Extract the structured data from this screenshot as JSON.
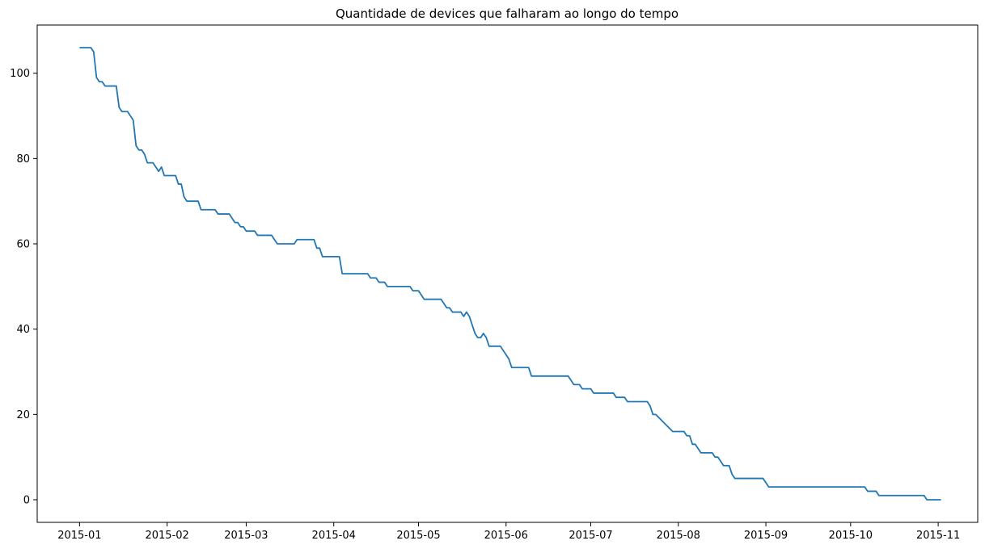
{
  "chart_data": {
    "type": "line",
    "title": "Quantidade de devices que falharam ao longo do tempo",
    "xlabel": "",
    "ylabel": "",
    "x_type": "date",
    "xlim": [
      "2014-12-17",
      "2015-11-15"
    ],
    "ylim": [
      -5.3,
      111.3
    ],
    "grid": false,
    "x_ticks": [
      {
        "date": "2015-01-01",
        "label": "2015-01"
      },
      {
        "date": "2015-02-01",
        "label": "2015-02"
      },
      {
        "date": "2015-03-01",
        "label": "2015-03"
      },
      {
        "date": "2015-04-01",
        "label": "2015-04"
      },
      {
        "date": "2015-05-01",
        "label": "2015-05"
      },
      {
        "date": "2015-06-01",
        "label": "2015-06"
      },
      {
        "date": "2015-07-01",
        "label": "2015-07"
      },
      {
        "date": "2015-08-01",
        "label": "2015-08"
      },
      {
        "date": "2015-09-01",
        "label": "2015-09"
      },
      {
        "date": "2015-10-01",
        "label": "2015-10"
      },
      {
        "date": "2015-11-01",
        "label": "2015-11"
      }
    ],
    "y_ticks": [
      0,
      20,
      40,
      60,
      80,
      100
    ],
    "series": [
      {
        "color": "#1f77b4",
        "points": [
          [
            "2015-01-01",
            106
          ],
          [
            "2015-01-05",
            106
          ],
          [
            "2015-01-06",
            105
          ],
          [
            "2015-01-07",
            99
          ],
          [
            "2015-01-08",
            98
          ],
          [
            "2015-01-09",
            98
          ],
          [
            "2015-01-10",
            97
          ],
          [
            "2015-01-14",
            97
          ],
          [
            "2015-01-15",
            92
          ],
          [
            "2015-01-16",
            91
          ],
          [
            "2015-01-18",
            91
          ],
          [
            "2015-01-20",
            89
          ],
          [
            "2015-01-21",
            83
          ],
          [
            "2015-01-22",
            82
          ],
          [
            "2015-01-23",
            82
          ],
          [
            "2015-01-24",
            81
          ],
          [
            "2015-01-25",
            79
          ],
          [
            "2015-01-27",
            79
          ],
          [
            "2015-01-29",
            77
          ],
          [
            "2015-01-30",
            78
          ],
          [
            "2015-01-31",
            76
          ],
          [
            "2015-02-04",
            76
          ],
          [
            "2015-02-05",
            74
          ],
          [
            "2015-02-06",
            74
          ],
          [
            "2015-02-07",
            71
          ],
          [
            "2015-02-08",
            70
          ],
          [
            "2015-02-12",
            70
          ],
          [
            "2015-02-13",
            68
          ],
          [
            "2015-02-18",
            68
          ],
          [
            "2015-02-19",
            67
          ],
          [
            "2015-02-23",
            67
          ],
          [
            "2015-02-25",
            65
          ],
          [
            "2015-02-26",
            65
          ],
          [
            "2015-02-27",
            64
          ],
          [
            "2015-02-28",
            64
          ],
          [
            "2015-03-01",
            63
          ],
          [
            "2015-03-04",
            63
          ],
          [
            "2015-03-05",
            62
          ],
          [
            "2015-03-10",
            62
          ],
          [
            "2015-03-12",
            60
          ],
          [
            "2015-03-18",
            60
          ],
          [
            "2015-03-19",
            61
          ],
          [
            "2015-03-25",
            61
          ],
          [
            "2015-03-26",
            59
          ],
          [
            "2015-03-27",
            59
          ],
          [
            "2015-03-28",
            57
          ],
          [
            "2015-04-03",
            57
          ],
          [
            "2015-04-04",
            53
          ],
          [
            "2015-04-13",
            53
          ],
          [
            "2015-04-14",
            52
          ],
          [
            "2015-04-16",
            52
          ],
          [
            "2015-04-17",
            51
          ],
          [
            "2015-04-19",
            51
          ],
          [
            "2015-04-20",
            50
          ],
          [
            "2015-04-28",
            50
          ],
          [
            "2015-04-29",
            49
          ],
          [
            "2015-05-01",
            49
          ],
          [
            "2015-05-03",
            47
          ],
          [
            "2015-05-09",
            47
          ],
          [
            "2015-05-11",
            45
          ],
          [
            "2015-05-12",
            45
          ],
          [
            "2015-05-13",
            44
          ],
          [
            "2015-05-16",
            44
          ],
          [
            "2015-05-17",
            43
          ],
          [
            "2015-05-18",
            44
          ],
          [
            "2015-05-19",
            43
          ],
          [
            "2015-05-20",
            41
          ],
          [
            "2015-05-21",
            39
          ],
          [
            "2015-05-22",
            38
          ],
          [
            "2015-05-23",
            38
          ],
          [
            "2015-05-24",
            39
          ],
          [
            "2015-05-25",
            38
          ],
          [
            "2015-05-26",
            36
          ],
          [
            "2015-05-30",
            36
          ],
          [
            "2015-06-02",
            33
          ],
          [
            "2015-06-03",
            31
          ],
          [
            "2015-06-09",
            31
          ],
          [
            "2015-06-10",
            29
          ],
          [
            "2015-06-23",
            29
          ],
          [
            "2015-06-25",
            27
          ],
          [
            "2015-06-27",
            27
          ],
          [
            "2015-06-28",
            26
          ],
          [
            "2015-07-01",
            26
          ],
          [
            "2015-07-02",
            25
          ],
          [
            "2015-07-09",
            25
          ],
          [
            "2015-07-10",
            24
          ],
          [
            "2015-07-13",
            24
          ],
          [
            "2015-07-14",
            23
          ],
          [
            "2015-07-21",
            23
          ],
          [
            "2015-07-22",
            22
          ],
          [
            "2015-07-23",
            20
          ],
          [
            "2015-07-24",
            20
          ],
          [
            "2015-07-30",
            16
          ],
          [
            "2015-08-03",
            16
          ],
          [
            "2015-08-04",
            15
          ],
          [
            "2015-08-05",
            15
          ],
          [
            "2015-08-06",
            13
          ],
          [
            "2015-08-07",
            13
          ],
          [
            "2015-08-09",
            11
          ],
          [
            "2015-08-13",
            11
          ],
          [
            "2015-08-14",
            10
          ],
          [
            "2015-08-15",
            10
          ],
          [
            "2015-08-17",
            8
          ],
          [
            "2015-08-19",
            8
          ],
          [
            "2015-08-20",
            6
          ],
          [
            "2015-08-21",
            5
          ],
          [
            "2015-08-31",
            5
          ],
          [
            "2015-09-02",
            3
          ],
          [
            "2015-10-06",
            3
          ],
          [
            "2015-10-07",
            2
          ],
          [
            "2015-10-10",
            2
          ],
          [
            "2015-10-11",
            1
          ],
          [
            "2015-10-27",
            1
          ],
          [
            "2015-10-28",
            0
          ],
          [
            "2015-11-02",
            0
          ]
        ]
      }
    ]
  }
}
